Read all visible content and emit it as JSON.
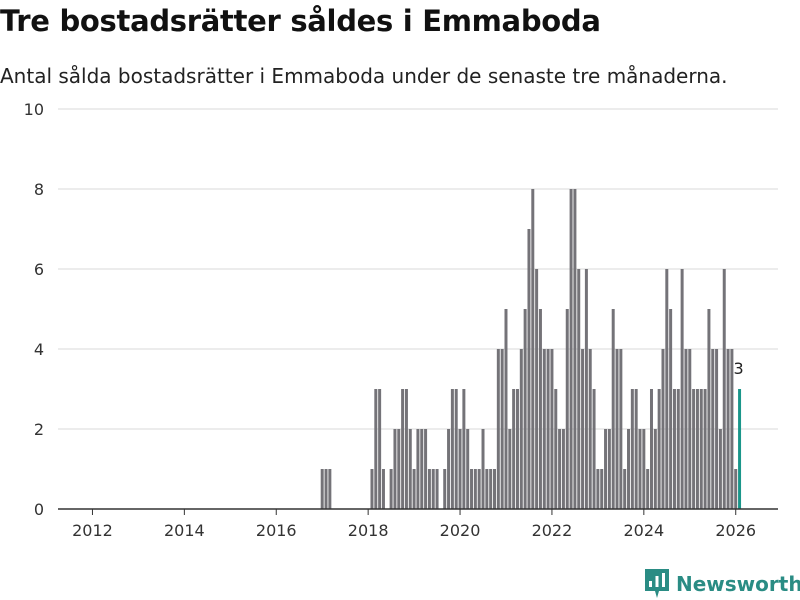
{
  "header": {
    "title": "Tre bostadsrätter såldes i Emmaboda",
    "subtitle": "Antal sålda bostadsrätter i Emmaboda under de senaste tre månaderna."
  },
  "brand": {
    "name": "Newsworthy",
    "icon": "newsworthy-logo-icon",
    "color": "#2a8c84"
  },
  "colors": {
    "bar": "#747378",
    "highlight": "#1a968a",
    "grid": "#d9d9d9",
    "axis": "#333333"
  },
  "chart_data": {
    "type": "bar",
    "title": "Tre bostadsrätter såldes i Emmaboda",
    "subtitle": "Antal sålda bostadsrätter i Emmaboda under de senaste tre månaderna.",
    "xlabel": "",
    "ylabel": "",
    "ylim": [
      0,
      10
    ],
    "xlim": [
      2011.25,
      2026.92
    ],
    "yticks": [
      "0",
      "2",
      "4",
      "6",
      "8",
      "10"
    ],
    "xticks": [
      "2012",
      "2014",
      "2016",
      "2018",
      "2020",
      "2022",
      "2024",
      "2026"
    ],
    "grid": true,
    "start": {
      "year": 2011,
      "month": 1
    },
    "highlight_last": true,
    "last_label": "3",
    "values": [
      0,
      0,
      0,
      0,
      0,
      0,
      0,
      0,
      0,
      0,
      0,
      0,
      0,
      0,
      0,
      0,
      0,
      0,
      0,
      0,
      0,
      0,
      0,
      0,
      0,
      0,
      0,
      0,
      0,
      0,
      0,
      0,
      0,
      0,
      0,
      0,
      0,
      0,
      0,
      0,
      0,
      0,
      0,
      0,
      0,
      0,
      0,
      0,
      0,
      0,
      0,
      0,
      0,
      0,
      0,
      0,
      0,
      0,
      0,
      0,
      0,
      0,
      0,
      0,
      0,
      0,
      0,
      0,
      0,
      0,
      0,
      0,
      1,
      1,
      1,
      0,
      0,
      0,
      0,
      0,
      0,
      0,
      0,
      0,
      0,
      1,
      3,
      3,
      1,
      0,
      1,
      2,
      2,
      3,
      3,
      2,
      1,
      2,
      2,
      2,
      1,
      1,
      1,
      0,
      1,
      2,
      3,
      3,
      2,
      3,
      2,
      1,
      1,
      1,
      2,
      1,
      1,
      1,
      4,
      4,
      5,
      2,
      3,
      3,
      4,
      5,
      7,
      8,
      6,
      5,
      4,
      4,
      4,
      3,
      2,
      2,
      5,
      8,
      8,
      6,
      4,
      6,
      4,
      3,
      1,
      1,
      2,
      2,
      5,
      4,
      4,
      1,
      2,
      3,
      3,
      2,
      2,
      1,
      3,
      2,
      3,
      4,
      6,
      5,
      3,
      3,
      6,
      4,
      4,
      3,
      3,
      3,
      3,
      5,
      4,
      4,
      2,
      6,
      4,
      4,
      1,
      3
    ]
  }
}
